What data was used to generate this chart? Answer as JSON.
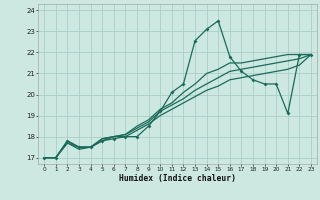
{
  "xlabel": "Humidex (Indice chaleur)",
  "xlim": [
    -0.5,
    23.5
  ],
  "ylim": [
    16.7,
    24.3
  ],
  "xticks": [
    0,
    1,
    2,
    3,
    4,
    5,
    6,
    7,
    8,
    9,
    10,
    11,
    12,
    13,
    14,
    15,
    16,
    17,
    18,
    19,
    20,
    21,
    22,
    23
  ],
  "yticks": [
    17,
    18,
    19,
    20,
    21,
    22,
    23,
    24
  ],
  "bg_color": "#cce8e0",
  "line_color": "#1a6b5a",
  "grid_color": "#aacfc7",
  "main_line_x": [
    0,
    1,
    2,
    3,
    4,
    5,
    6,
    7,
    8,
    9,
    10,
    11,
    12,
    13,
    14,
    15,
    16,
    17,
    18,
    19,
    20,
    21,
    22,
    23
  ],
  "main_line_y": [
    17.0,
    17.0,
    17.8,
    17.5,
    17.5,
    17.8,
    17.9,
    18.0,
    18.0,
    18.5,
    19.2,
    20.1,
    20.5,
    22.55,
    23.1,
    23.5,
    21.8,
    21.1,
    20.7,
    20.5,
    20.5,
    19.1,
    21.9,
    21.9
  ],
  "trend1_x": [
    0,
    1,
    2,
    3,
    4,
    5,
    6,
    7,
    8,
    9,
    10,
    11,
    12,
    13,
    14,
    15,
    16,
    17,
    18,
    19,
    20,
    21,
    22,
    23
  ],
  "trend1_y": [
    17.0,
    17.0,
    17.8,
    17.5,
    17.5,
    17.9,
    18.0,
    18.1,
    18.5,
    18.8,
    19.3,
    19.6,
    20.1,
    20.5,
    21.0,
    21.2,
    21.5,
    21.5,
    21.6,
    21.7,
    21.8,
    21.9,
    21.9,
    21.9
  ],
  "trend2_x": [
    0,
    1,
    2,
    3,
    4,
    5,
    6,
    7,
    8,
    9,
    10,
    11,
    12,
    13,
    14,
    15,
    16,
    17,
    18,
    19,
    20,
    21,
    22,
    23
  ],
  "trend2_y": [
    17.0,
    17.0,
    17.7,
    17.5,
    17.5,
    17.9,
    18.0,
    18.1,
    18.4,
    18.7,
    19.2,
    19.5,
    19.8,
    20.2,
    20.5,
    20.8,
    21.1,
    21.2,
    21.3,
    21.4,
    21.5,
    21.6,
    21.7,
    21.9
  ],
  "trend3_x": [
    0,
    1,
    2,
    3,
    4,
    5,
    6,
    7,
    8,
    9,
    10,
    11,
    12,
    13,
    14,
    15,
    16,
    17,
    18,
    19,
    20,
    21,
    22,
    23
  ],
  "trend3_y": [
    17.0,
    17.0,
    17.7,
    17.4,
    17.5,
    17.8,
    18.0,
    18.0,
    18.3,
    18.6,
    19.0,
    19.3,
    19.6,
    19.9,
    20.2,
    20.4,
    20.7,
    20.8,
    20.9,
    21.0,
    21.1,
    21.2,
    21.4,
    21.9
  ]
}
